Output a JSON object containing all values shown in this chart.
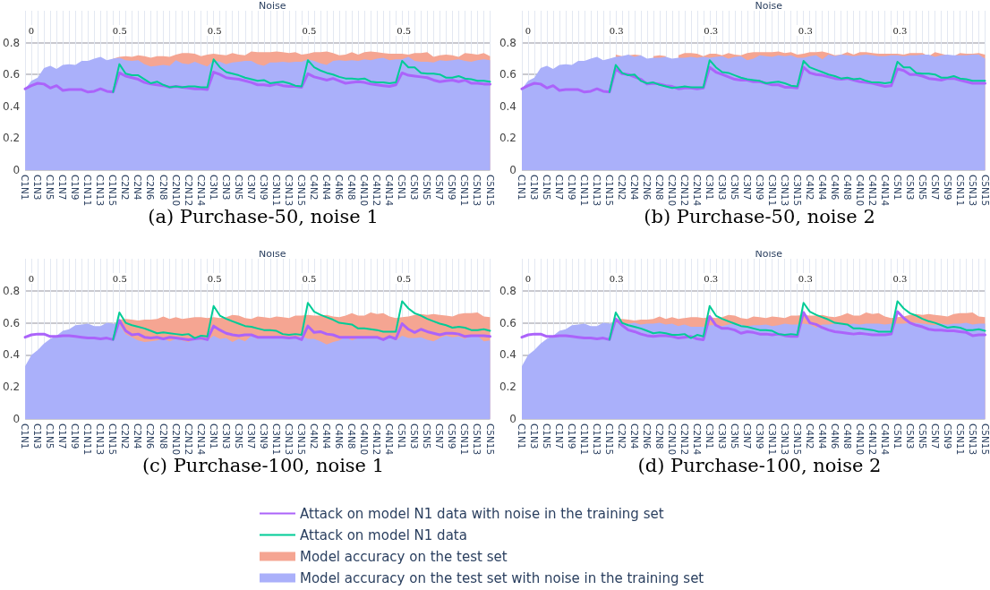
{
  "chart_data": [
    {
      "type": "line",
      "title": "(a) Purchase-50, noise 1",
      "subtitle": "Noise",
      "annotations": [
        "0",
        "0.5",
        "0.5",
        "0.5",
        "0.5"
      ],
      "ylim": [
        0,
        1
      ],
      "yticks": [
        0,
        0.2,
        0.4,
        0.6,
        0.8
      ],
      "grid": true,
      "legend": false,
      "categories": [
        "C1N1",
        null,
        "C1N3",
        null,
        "C1N5",
        null,
        "C1N7",
        null,
        "C1N9",
        null,
        "C1N11",
        null,
        "C1N13",
        null,
        "C1N15",
        null,
        "C2N2",
        null,
        "C2N4",
        null,
        "C2N6",
        null,
        "C2N8",
        null,
        "C2N10",
        null,
        "C2N12",
        null,
        "C2N14",
        null,
        "C3N1",
        null,
        "C3N3",
        null,
        "C3N5",
        null,
        "C3N7",
        null,
        "C3N9",
        null,
        "C3N11",
        null,
        "C3N13",
        null,
        "C3N15",
        null,
        "C4N2",
        null,
        "C4N4",
        null,
        "C4N6",
        null,
        "C4N8",
        null,
        "C4N10",
        null,
        "C4N12",
        null,
        "C4N14",
        null,
        "C5N1",
        null,
        "C5N3",
        null,
        "C5N5",
        null,
        "C5N7",
        null,
        "C5N9",
        null,
        "C5N11",
        null,
        "C5N13",
        null,
        "C5N15"
      ],
      "series": [
        {
          "type": "line",
          "color": "#ab63fa",
          "values": [
            0.51,
            0.53,
            0.545,
            0.54,
            0.515,
            0.53,
            0.5,
            0.505,
            0.505,
            0.505,
            0.49,
            0.495,
            0.51,
            0.495,
            0.49,
            0.61,
            0.59,
            0.58,
            0.57,
            0.55,
            0.54,
            0.535,
            0.53,
            0.52,
            0.525,
            0.52,
            0.515,
            0.51,
            0.51,
            0.505,
            0.615,
            0.6,
            0.58,
            0.575,
            0.57,
            0.56,
            0.55,
            0.535,
            0.535,
            0.53,
            0.54,
            0.53,
            0.525,
            0.525,
            0.52,
            0.605,
            0.585,
            0.575,
            0.565,
            0.575,
            0.56,
            0.545,
            0.55,
            0.555,
            0.55,
            0.54,
            0.535,
            0.53,
            0.525,
            0.535,
            0.61,
            0.595,
            0.59,
            0.585,
            0.58,
            0.565,
            0.555,
            0.56,
            0.565,
            0.555,
            0.565,
            0.545,
            0.545,
            0.54,
            0.54
          ]
        },
        {
          "type": "line",
          "color": "#00cc96",
          "values": [
            null,
            null,
            null,
            null,
            null,
            null,
            null,
            null,
            null,
            null,
            null,
            null,
            null,
            null,
            0.49,
            0.665,
            0.605,
            0.595,
            0.595,
            0.57,
            0.545,
            0.555,
            0.535,
            0.52,
            0.525,
            0.52,
            0.525,
            0.525,
            0.52,
            0.52,
            0.695,
            0.645,
            0.615,
            0.605,
            0.595,
            0.58,
            0.57,
            0.56,
            0.565,
            0.545,
            0.55,
            0.555,
            0.545,
            0.53,
            0.525,
            0.69,
            0.645,
            0.625,
            0.61,
            0.6,
            0.585,
            0.575,
            0.575,
            0.57,
            0.575,
            0.555,
            0.55,
            0.55,
            0.545,
            0.55,
            0.685,
            0.645,
            0.645,
            0.61,
            0.605,
            0.605,
            0.6,
            0.58,
            0.58,
            0.59,
            0.575,
            0.57,
            0.56,
            0.56,
            0.555
          ]
        },
        {
          "type": "area",
          "color": "#f5a592",
          "values": [
            null,
            null,
            null,
            null,
            null,
            null,
            null,
            null,
            null,
            null,
            null,
            null,
            null,
            null,
            0.7,
            0.71,
            0.715,
            0.71,
            0.72,
            0.715,
            0.705,
            0.715,
            0.715,
            0.71,
            0.725,
            0.735,
            0.735,
            0.73,
            0.715,
            0.725,
            0.73,
            0.725,
            0.72,
            0.735,
            0.725,
            0.72,
            0.745,
            0.74,
            0.74,
            0.74,
            0.745,
            0.74,
            0.735,
            0.74,
            0.725,
            0.73,
            0.74,
            0.74,
            0.745,
            0.735,
            0.72,
            0.725,
            0.74,
            0.725,
            0.74,
            0.745,
            0.74,
            0.735,
            0.73,
            0.73,
            0.73,
            0.725,
            0.735,
            0.735,
            0.74,
            0.71,
            0.72,
            0.725,
            0.72,
            0.71,
            0.735,
            0.73,
            0.725,
            0.735,
            0.715
          ]
        },
        {
          "type": "area",
          "color": "#aab0fa",
          "values": [
            0.51,
            0.56,
            0.58,
            0.64,
            0.655,
            0.635,
            0.66,
            0.665,
            0.66,
            0.685,
            0.685,
            0.7,
            0.71,
            0.69,
            0.7,
            0.705,
            0.69,
            0.685,
            0.69,
            0.665,
            0.65,
            0.655,
            0.66,
            0.655,
            0.69,
            0.67,
            0.665,
            0.68,
            0.665,
            0.65,
            0.69,
            0.68,
            0.665,
            0.675,
            0.68,
            0.685,
            0.685,
            0.665,
            0.655,
            0.675,
            0.675,
            0.68,
            0.675,
            0.68,
            0.68,
            0.695,
            0.685,
            0.67,
            0.66,
            0.685,
            0.69,
            0.685,
            0.69,
            0.685,
            0.695,
            0.69,
            0.7,
            0.705,
            0.69,
            0.695,
            0.695,
            0.71,
            0.685,
            0.68,
            0.68,
            0.675,
            0.69,
            0.685,
            0.69,
            0.695,
            0.685,
            0.68,
            0.69,
            0.695,
            0.69
          ]
        }
      ]
    },
    {
      "type": "line",
      "title": "(b) Purchase-50, noise 2",
      "subtitle": "Noise",
      "annotations": [
        "0",
        "0.3",
        "0.3",
        "0.3",
        "0.3"
      ],
      "ylim": [
        0,
        1
      ],
      "yticks": [
        0,
        0.2,
        0.4,
        0.6,
        0.8
      ],
      "grid": true,
      "legend": false,
      "categories": [
        "C1N1",
        null,
        "C1N3",
        null,
        "C1N5",
        null,
        "C1N7",
        null,
        "C1N9",
        null,
        "C1N11",
        null,
        "C1N13",
        null,
        "C1N15",
        null,
        "C2N2",
        null,
        "C2N4",
        null,
        "C2N6",
        null,
        "C2N8",
        null,
        "C2N10",
        null,
        "C2N12",
        null,
        "C2N14",
        null,
        "C3N1",
        null,
        "C3N3",
        null,
        "C3N5",
        null,
        "C3N7",
        null,
        "C3N9",
        null,
        "C3N11",
        null,
        "C3N13",
        null,
        "C3N15",
        null,
        "C4N2",
        null,
        "C4N4",
        null,
        "C4N6",
        null,
        "C4N8",
        null,
        "C4N10",
        null,
        "C4N12",
        null,
        "C4N14",
        null,
        "C5N1",
        null,
        "C5N3",
        null,
        "C5N5",
        null,
        "C5N7",
        null,
        "C5N9",
        null,
        "C5N11",
        null,
        "C5N13",
        null,
        "C5N15"
      ],
      "series": [
        {
          "type": "line",
          "color": "#ab63fa",
          "values": [
            0.51,
            0.53,
            0.545,
            0.54,
            0.515,
            0.53,
            0.5,
            0.505,
            0.505,
            0.505,
            0.49,
            0.495,
            0.51,
            0.495,
            0.49,
            0.635,
            0.605,
            0.6,
            0.585,
            0.57,
            0.54,
            0.545,
            0.54,
            0.53,
            0.525,
            0.51,
            0.515,
            0.515,
            0.51,
            0.515,
            0.645,
            0.615,
            0.6,
            0.585,
            0.57,
            0.565,
            0.565,
            0.555,
            0.555,
            0.545,
            0.535,
            0.535,
            0.52,
            0.52,
            0.515,
            0.645,
            0.61,
            0.6,
            0.595,
            0.585,
            0.575,
            0.57,
            0.575,
            0.565,
            0.555,
            0.55,
            0.545,
            0.535,
            0.525,
            0.53,
            0.635,
            0.625,
            0.6,
            0.6,
            0.59,
            0.575,
            0.57,
            0.565,
            0.575,
            0.575,
            0.565,
            0.555,
            0.545,
            0.545,
            0.545
          ]
        },
        {
          "type": "line",
          "color": "#00cc96",
          "values": [
            null,
            null,
            null,
            null,
            null,
            null,
            null,
            null,
            null,
            null,
            null,
            null,
            null,
            null,
            0.49,
            0.66,
            0.61,
            0.595,
            0.6,
            0.56,
            0.545,
            0.55,
            0.535,
            0.525,
            0.515,
            0.52,
            0.525,
            0.52,
            0.52,
            0.52,
            0.69,
            0.645,
            0.615,
            0.61,
            0.595,
            0.58,
            0.57,
            0.565,
            0.56,
            0.545,
            0.55,
            0.555,
            0.545,
            0.53,
            0.525,
            0.685,
            0.645,
            0.63,
            0.615,
            0.6,
            0.59,
            0.575,
            0.58,
            0.57,
            0.575,
            0.56,
            0.55,
            0.55,
            0.545,
            0.55,
            0.68,
            0.645,
            0.645,
            0.61,
            0.605,
            0.605,
            0.6,
            0.58,
            0.58,
            0.59,
            0.575,
            0.57,
            0.56,
            0.56,
            0.56
          ]
        },
        {
          "type": "area",
          "color": "#f5a592",
          "values": [
            null,
            null,
            null,
            null,
            null,
            null,
            null,
            null,
            null,
            null,
            null,
            null,
            null,
            null,
            null,
            0.725,
            0.715,
            0.72,
            0.725,
            0.72,
            null,
            0.715,
            0.72,
            0.715,
            null,
            0.72,
            0.735,
            0.735,
            0.73,
            0.715,
            0.73,
            0.73,
            0.72,
            0.735,
            0.725,
            0.72,
            0.735,
            0.74,
            0.74,
            0.74,
            0.74,
            0.745,
            0.735,
            0.74,
            0.725,
            0.73,
            0.74,
            0.74,
            0.745,
            0.735,
            0.72,
            0.725,
            0.74,
            0.725,
            0.74,
            0.74,
            0.735,
            0.73,
            0.73,
            0.73,
            0.73,
            0.725,
            0.735,
            0.735,
            0.735,
            0.715,
            0.74,
            0.73,
            0.72,
            0.715,
            0.735,
            0.73,
            0.73,
            0.735,
            0.725
          ]
        },
        {
          "type": "area",
          "color": "#aab0fa",
          "values": [
            0.51,
            0.56,
            0.58,
            0.64,
            0.655,
            0.635,
            0.66,
            0.665,
            0.66,
            0.685,
            0.685,
            0.7,
            0.71,
            0.69,
            0.7,
            0.71,
            0.715,
            0.725,
            0.71,
            0.72,
            0.7,
            0.705,
            0.705,
            0.71,
            0.7,
            0.705,
            0.705,
            0.71,
            0.705,
            0.71,
            0.705,
            0.71,
            0.715,
            0.7,
            0.71,
            0.715,
            0.69,
            0.7,
            0.72,
            0.715,
            0.71,
            0.72,
            0.715,
            0.72,
            0.705,
            0.705,
            0.715,
            0.72,
            0.695,
            0.725,
            0.715,
            0.725,
            0.72,
            0.715,
            0.72,
            0.725,
            0.72,
            0.715,
            0.715,
            0.72,
            0.72,
            0.715,
            0.72,
            0.72,
            0.725,
            0.725,
            0.71,
            0.72,
            0.725,
            0.72,
            0.72,
            0.72,
            0.725,
            0.725,
            0.7
          ]
        }
      ]
    },
    {
      "type": "line",
      "title": "(c) Purchase-100, noise 1",
      "subtitle": "Noise",
      "annotations": [
        "0",
        "0.5",
        "0.5",
        "0.5",
        "0.5"
      ],
      "ylim": [
        0,
        1
      ],
      "yticks": [
        0,
        0.2,
        0.4,
        0.6,
        0.8
      ],
      "grid": true,
      "legend": false,
      "categories": [
        "C1N1",
        null,
        "C1N3",
        null,
        "C1N5",
        null,
        "C1N7",
        null,
        "C1N9",
        null,
        "C1N11",
        null,
        "C1N13",
        null,
        "C1N15",
        null,
        "C2N2",
        null,
        "C2N4",
        null,
        "C2N6",
        null,
        "C2N8",
        null,
        "C2N10",
        null,
        "C2N12",
        null,
        "C2N14",
        null,
        "C3N1",
        null,
        "C3N3",
        null,
        "C3N5",
        null,
        "C3N7",
        null,
        "C3N9",
        null,
        "C3N11",
        null,
        "C3N13",
        null,
        "C3N15",
        null,
        "C4N2",
        null,
        "C4N4",
        null,
        "C4N6",
        null,
        "C4N8",
        null,
        "C4N10",
        null,
        "C4N12",
        null,
        "C4N14",
        null,
        "C5N1",
        null,
        "C5N3",
        null,
        "C5N5",
        null,
        "C5N7",
        null,
        "C5N9",
        null,
        "C5N11",
        null,
        "C5N13",
        null,
        "C5N15"
      ],
      "series": [
        {
          "type": "line",
          "color": "#ab63fa",
          "values": [
            0.51,
            0.525,
            0.53,
            0.53,
            0.515,
            0.515,
            0.52,
            0.52,
            0.515,
            0.51,
            0.505,
            0.505,
            0.5,
            0.505,
            0.495,
            0.615,
            0.55,
            0.525,
            0.53,
            0.51,
            0.505,
            0.51,
            0.5,
            0.51,
            0.505,
            0.5,
            0.495,
            0.5,
            0.505,
            0.495,
            0.58,
            0.555,
            0.535,
            0.525,
            0.52,
            0.525,
            0.525,
            0.51,
            0.51,
            0.51,
            0.51,
            0.51,
            0.505,
            0.51,
            0.495,
            0.58,
            0.54,
            0.545,
            0.53,
            0.525,
            0.51,
            0.51,
            0.51,
            0.51,
            0.51,
            0.51,
            0.51,
            0.495,
            0.515,
            0.5,
            0.595,
            0.56,
            0.54,
            0.56,
            0.545,
            0.535,
            0.525,
            0.535,
            0.535,
            0.53,
            0.515,
            0.52,
            0.52,
            0.52,
            0.515
          ]
        },
        {
          "type": "line",
          "color": "#00cc96",
          "values": [
            null,
            null,
            null,
            null,
            null,
            null,
            null,
            null,
            null,
            null,
            null,
            null,
            null,
            null,
            0.495,
            0.665,
            0.6,
            0.585,
            0.575,
            0.565,
            0.55,
            0.535,
            0.54,
            0.535,
            0.53,
            0.525,
            0.53,
            0.505,
            0.52,
            0.515,
            0.705,
            0.645,
            0.625,
            0.61,
            0.595,
            0.58,
            0.575,
            0.565,
            0.555,
            0.555,
            0.55,
            0.53,
            0.525,
            0.53,
            0.525,
            0.725,
            0.67,
            0.65,
            0.635,
            0.62,
            0.6,
            0.595,
            0.59,
            0.565,
            0.565,
            0.56,
            0.555,
            0.545,
            0.545,
            0.545,
            0.735,
            0.69,
            0.66,
            0.645,
            0.625,
            0.61,
            0.595,
            0.585,
            0.57,
            0.575,
            0.57,
            0.555,
            0.555,
            0.56,
            0.55
          ]
        },
        {
          "type": "area",
          "color": "#f5a592",
          "values": [
            null,
            null,
            null,
            null,
            null,
            null,
            null,
            null,
            null,
            null,
            null,
            null,
            null,
            null,
            null,
            0.62,
            0.625,
            0.62,
            0.615,
            0.62,
            0.62,
            0.625,
            0.64,
            0.625,
            0.635,
            0.625,
            0.63,
            0.635,
            0.635,
            0.63,
            0.635,
            0.63,
            0.635,
            0.65,
            0.645,
            0.63,
            0.625,
            0.64,
            0.635,
            0.63,
            0.64,
            0.635,
            0.63,
            0.645,
            0.645,
            0.65,
            0.645,
            0.645,
            0.65,
            0.64,
            0.635,
            0.645,
            0.66,
            0.645,
            0.645,
            0.665,
            0.655,
            0.66,
            0.64,
            0.63,
            0.635,
            0.64,
            0.65,
            0.655,
            0.65,
            0.655,
            0.65,
            0.645,
            0.64,
            0.655,
            0.66,
            0.66,
            0.665,
            0.64,
            0.635
          ]
        },
        {
          "type": "area",
          "color": "#aab0fa",
          "values": [
            0.33,
            0.4,
            0.43,
            0.47,
            0.5,
            0.52,
            0.55,
            0.56,
            0.585,
            0.59,
            0.595,
            0.58,
            0.58,
            0.6,
            0.595,
            0.59,
            0.53,
            0.51,
            0.49,
            0.48,
            0.485,
            0.49,
            0.5,
            0.485,
            0.5,
            0.49,
            0.48,
            0.5,
            0.495,
            0.49,
            0.52,
            0.5,
            0.505,
            0.48,
            0.5,
            0.485,
            0.52,
            0.5,
            0.515,
            0.505,
            0.52,
            0.51,
            0.515,
            0.505,
            0.52,
            0.5,
            0.5,
            0.485,
            0.465,
            0.48,
            0.49,
            0.515,
            0.49,
            0.505,
            0.5,
            0.51,
            0.505,
            0.49,
            0.51,
            0.49,
            0.52,
            0.505,
            0.505,
            0.51,
            0.495,
            0.485,
            0.505,
            0.52,
            0.51,
            0.515,
            0.5,
            0.525,
            0.52,
            0.485,
            0.49
          ]
        }
      ]
    },
    {
      "type": "line",
      "title": "(d) Purchase-100, noise 2",
      "subtitle": "Noise",
      "annotations": [
        "0",
        "0.3",
        "0.3",
        "0.3",
        "0.3"
      ],
      "ylim": [
        0,
        1
      ],
      "yticks": [
        0,
        0.2,
        0.4,
        0.6,
        0.8
      ],
      "grid": true,
      "legend": "bottom",
      "categories": [
        "C1N1",
        null,
        "C1N3",
        null,
        "C1N5",
        null,
        "C1N7",
        null,
        "C1N9",
        null,
        "C1N11",
        null,
        "C1N13",
        null,
        "C1N15",
        null,
        "C2N2",
        null,
        "C2N4",
        null,
        "C2N6",
        null,
        "C2N8",
        null,
        "C2N10",
        null,
        "C2N12",
        null,
        "C2N14",
        null,
        "C3N1",
        null,
        "C3N3",
        null,
        "C3N5",
        null,
        "C3N7",
        null,
        "C3N9",
        null,
        "C3N11",
        null,
        "C3N13",
        null,
        "C3N15",
        null,
        "C4N2",
        null,
        "C4N4",
        null,
        "C4N6",
        null,
        "C4N8",
        null,
        "C4N10",
        null,
        "C4N12",
        null,
        "C4N14",
        null,
        "C5N1",
        null,
        "C5N3",
        null,
        "C5N5",
        null,
        "C5N7",
        null,
        "C5N9",
        null,
        "C5N11",
        null,
        "C5N13",
        null,
        "C5N15"
      ],
      "series": [
        {
          "type": "line",
          "name": "Attack on model N1 data with noise in the training set",
          "color": "#ab63fa",
          "values": [
            0.51,
            0.525,
            0.53,
            0.53,
            0.515,
            0.515,
            0.52,
            0.52,
            0.515,
            0.51,
            0.505,
            0.505,
            0.5,
            0.505,
            0.495,
            0.625,
            0.585,
            0.555,
            0.545,
            0.53,
            0.52,
            0.515,
            0.52,
            0.52,
            0.515,
            0.505,
            0.51,
            0.515,
            0.5,
            0.495,
            0.64,
            0.585,
            0.565,
            0.565,
            0.555,
            0.535,
            0.545,
            0.54,
            0.53,
            0.53,
            0.525,
            0.53,
            0.52,
            0.515,
            0.515,
            0.665,
            0.6,
            0.59,
            0.57,
            0.555,
            0.545,
            0.54,
            0.535,
            0.53,
            0.535,
            0.53,
            0.525,
            0.525,
            0.525,
            0.53,
            0.67,
            0.63,
            0.6,
            0.585,
            0.575,
            0.56,
            0.555,
            0.555,
            0.55,
            0.55,
            0.545,
            0.54,
            0.52,
            0.525,
            0.525
          ]
        },
        {
          "type": "line",
          "name": "Attack on model N1 data",
          "color": "#00cc96",
          "values": [
            null,
            null,
            null,
            null,
            null,
            null,
            null,
            null,
            null,
            null,
            null,
            null,
            null,
            null,
            0.495,
            0.665,
            0.6,
            0.585,
            0.575,
            0.565,
            0.55,
            0.535,
            0.54,
            0.535,
            0.525,
            0.525,
            0.53,
            0.505,
            0.525,
            0.515,
            0.705,
            0.645,
            0.625,
            0.61,
            0.595,
            0.58,
            0.575,
            0.565,
            0.555,
            0.555,
            0.55,
            0.53,
            0.525,
            0.53,
            0.525,
            0.725,
            0.67,
            0.65,
            0.635,
            0.62,
            0.6,
            0.595,
            0.59,
            0.565,
            0.565,
            0.56,
            0.555,
            0.545,
            0.545,
            0.545,
            0.735,
            0.69,
            0.66,
            0.645,
            0.625,
            0.61,
            0.6,
            0.585,
            0.57,
            0.575,
            0.57,
            0.555,
            0.555,
            0.56,
            0.55
          ]
        },
        {
          "type": "area",
          "name": "Model accuracy on the test set",
          "color": "#f5a592",
          "values": [
            null,
            null,
            null,
            null,
            null,
            null,
            null,
            null,
            null,
            null,
            null,
            null,
            null,
            null,
            null,
            0.62,
            0.625,
            0.62,
            0.615,
            0.62,
            0.62,
            0.625,
            0.64,
            0.625,
            0.635,
            0.625,
            0.63,
            0.635,
            0.635,
            0.63,
            0.635,
            0.63,
            0.635,
            0.65,
            0.645,
            0.63,
            0.625,
            0.64,
            0.635,
            0.63,
            0.64,
            0.635,
            0.63,
            0.645,
            0.645,
            0.65,
            0.645,
            0.645,
            0.65,
            0.64,
            0.635,
            0.645,
            0.66,
            0.645,
            0.645,
            0.665,
            0.655,
            0.66,
            0.64,
            0.63,
            0.635,
            0.64,
            0.65,
            0.655,
            0.65,
            0.655,
            0.65,
            0.645,
            0.64,
            0.655,
            0.66,
            0.66,
            0.665,
            0.64,
            0.635
          ]
        },
        {
          "type": "area",
          "name": "Model accuracy on the test set with noise in the training set",
          "color": "#aab0fa",
          "values": [
            0.33,
            0.4,
            0.43,
            0.47,
            0.5,
            0.52,
            0.55,
            0.56,
            0.585,
            0.59,
            0.595,
            0.58,
            0.58,
            0.6,
            0.595,
            0.6,
            0.595,
            0.595,
            0.6,
            0.59,
            0.595,
            0.595,
            0.6,
            0.59,
            0.595,
            0.58,
            0.59,
            0.575,
            0.575,
            0.575,
            0.585,
            0.585,
            0.58,
            0.59,
            0.595,
            0.59,
            0.58,
            0.585,
            0.585,
            0.59,
            0.58,
            0.585,
            0.595,
            0.59,
            0.59,
            0.595,
            0.59,
            0.57,
            0.59,
            0.59,
            0.595,
            0.59,
            0.59,
            0.595,
            0.59,
            0.595,
            0.595,
            0.595,
            0.59,
            0.595,
            0.595,
            0.595,
            0.6,
            0.6,
            0.595,
            0.59,
            0.585,
            0.595,
            0.59,
            0.595,
            0.595,
            0.6,
            0.59,
            0.595,
            0.595
          ]
        }
      ]
    }
  ]
}
